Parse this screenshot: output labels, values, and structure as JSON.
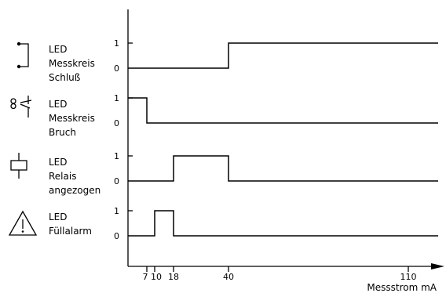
{
  "axis": {
    "label": "Messstrom mA",
    "ticks": [
      "7",
      "10",
      "18",
      "40",
      "110"
    ],
    "tick_values": [
      7,
      10,
      18,
      40,
      110
    ]
  },
  "rows": [
    {
      "icon": "led-short-circuit-icon",
      "label_lines": [
        "LED",
        "Messkreis",
        "Schluß"
      ],
      "level_high": "1",
      "level_low": "0",
      "signal": [
        [
          0,
          0
        ],
        [
          40,
          1
        ],
        [
          130,
          1
        ]
      ]
    },
    {
      "icon": "led-wire-break-scissors-icon",
      "label_lines": [
        "LED",
        "Messkreis",
        "Bruch"
      ],
      "level_high": "1",
      "level_low": "0",
      "signal": [
        [
          0,
          1
        ],
        [
          7,
          0
        ],
        [
          130,
          0
        ]
      ]
    },
    {
      "icon": "relay-coil-icon",
      "label_lines": [
        "LED",
        "Relais",
        "angezogen"
      ],
      "level_high": "1",
      "level_low": "0",
      "signal": [
        [
          0,
          0
        ],
        [
          18,
          1
        ],
        [
          40,
          0
        ],
        [
          130,
          0
        ]
      ]
    },
    {
      "icon": "warning-triangle-icon",
      "label_lines": [
        "LED",
        "Füllalarm"
      ],
      "level_high": "1",
      "level_low": "0",
      "signal": [
        [
          0,
          0
        ],
        [
          10,
          1
        ],
        [
          18,
          0
        ],
        [
          130,
          0
        ]
      ]
    }
  ]
}
